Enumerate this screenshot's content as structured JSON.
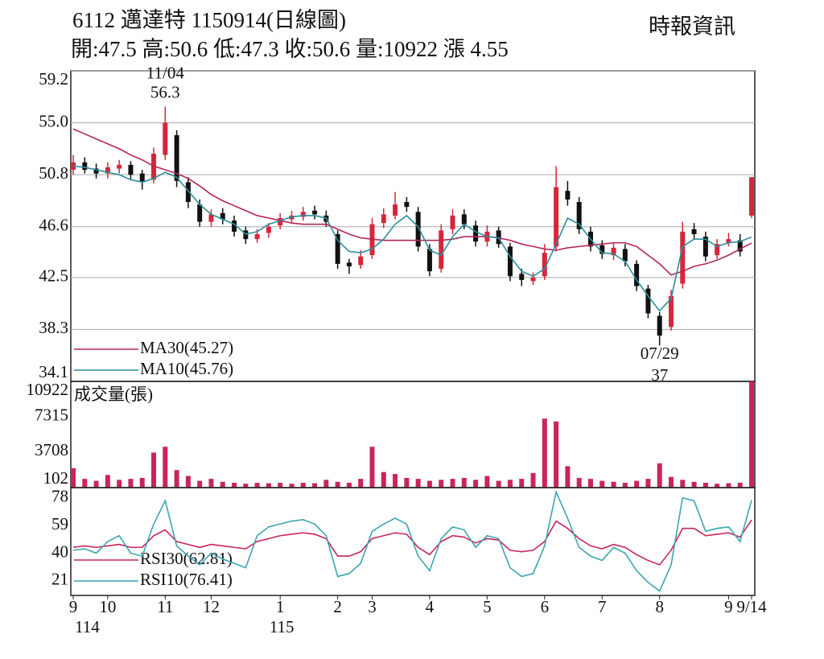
{
  "header": {
    "title": "6112  邁達特 1150914(日線圖)",
    "summary": "開:47.5 高:50.6 低:47.3 收:50.6 量:10922 漲 4.55",
    "source": "時報資訊"
  },
  "chart_data": [
    {
      "type": "candlestick",
      "categories": [
        "9",
        null,
        null,
        "10",
        null,
        null,
        null,
        null,
        "11",
        null,
        null,
        null,
        "12",
        null,
        null,
        null,
        null,
        null,
        "1",
        null,
        null,
        null,
        null,
        "2",
        null,
        null,
        "3",
        null,
        null,
        null,
        null,
        "4",
        null,
        null,
        null,
        null,
        "5",
        null,
        null,
        null,
        null,
        "6",
        null,
        null,
        null,
        null,
        "7",
        null,
        null,
        null,
        null,
        "8",
        null,
        null,
        null,
        null,
        null,
        "9",
        null,
        "9/14"
      ],
      "year_labels": [
        "114",
        null,
        null,
        null,
        null,
        null,
        null,
        null,
        null,
        null,
        null,
        null,
        null,
        null,
        null,
        null,
        null,
        null,
        "115",
        null,
        null,
        null,
        null,
        null,
        null,
        null,
        null,
        null,
        null,
        null,
        null,
        null,
        null,
        null,
        null,
        null,
        null,
        null,
        null,
        null,
        null,
        null,
        null,
        null,
        null,
        null,
        null,
        null,
        null,
        null,
        null,
        null,
        null,
        null,
        null,
        null,
        null,
        null,
        null,
        null
      ],
      "open": [
        51.2,
        51.8,
        51.3,
        50.9,
        51.3,
        51.6,
        50.9,
        50.4,
        52.4,
        54.0,
        50.2,
        48.4,
        47.0,
        47.7,
        47.1,
        46.3,
        45.6,
        46.1,
        46.7,
        47.2,
        47.4,
        47.9,
        47.5,
        46.0,
        43.7,
        43.5,
        44.3,
        46.9,
        47.5,
        48.6,
        47.8,
        44.8,
        43.2,
        46.4,
        47.6,
        46.7,
        45.4,
        46.3,
        45.0,
        42.8,
        42.2,
        42.6,
        45.0,
        49.5,
        48.6,
        46.2,
        45.1,
        44.3,
        44.8,
        43.6,
        41.6,
        39.4,
        38.5,
        42.0,
        46.4,
        45.8,
        44.3,
        45.3,
        45.5,
        47.5
      ],
      "high": [
        52.4,
        52.2,
        51.7,
        51.8,
        52.0,
        51.9,
        51.2,
        53.0,
        56.3,
        54.4,
        50.6,
        48.8,
        48.0,
        48.1,
        47.5,
        46.6,
        46.4,
        46.9,
        47.7,
        47.9,
        48.2,
        48.3,
        47.9,
        46.3,
        44.0,
        44.7,
        47.3,
        48.1,
        49.4,
        49.0,
        48.2,
        45.2,
        46.8,
        48.0,
        48.0,
        47.1,
        46.7,
        46.6,
        45.3,
        43.2,
        42.9,
        45.2,
        51.5,
        50.3,
        49.0,
        46.6,
        45.5,
        45.3,
        45.2,
        43.9,
        41.9,
        39.7,
        41.5,
        47.0,
        46.9,
        46.2,
        45.6,
        46.1,
        46.0,
        50.6
      ],
      "low": [
        50.8,
        50.9,
        50.5,
        50.5,
        50.9,
        50.4,
        49.6,
        50.1,
        52.0,
        49.8,
        48.1,
        46.6,
        46.6,
        46.8,
        45.8,
        45.2,
        45.3,
        45.7,
        46.4,
        46.9,
        47.1,
        47.2,
        46.6,
        43.2,
        42.8,
        43.2,
        44.0,
        46.5,
        47.2,
        47.8,
        44.6,
        42.6,
        42.9,
        46.0,
        46.4,
        45.0,
        45.0,
        44.9,
        42.2,
        41.8,
        41.9,
        42.3,
        44.6,
        48.3,
        46.0,
        44.6,
        44.0,
        43.9,
        43.4,
        41.4,
        39.2,
        37,
        38.2,
        41.6,
        45.6,
        43.8,
        44.0,
        45.0,
        44.2,
        47.3
      ],
      "close": [
        51.8,
        51.2,
        50.9,
        51.4,
        51.6,
        50.8,
        50.2,
        52.5,
        55.0,
        50.3,
        48.6,
        47.0,
        47.6,
        47.2,
        46.2,
        45.6,
        46.0,
        46.6,
        47.3,
        47.5,
        47.8,
        47.6,
        47.0,
        43.6,
        43.4,
        44.2,
        46.8,
        47.6,
        48.4,
        48.2,
        45.0,
        43.0,
        46.3,
        47.5,
        46.8,
        45.4,
        46.2,
        45.2,
        42.6,
        42.3,
        42.5,
        44.5,
        49.8,
        48.8,
        46.4,
        45.0,
        44.4,
        44.9,
        43.8,
        41.8,
        39.6,
        37.8,
        41.0,
        46.2,
        46.0,
        44.2,
        45.2,
        45.6,
        44.6,
        50.6
      ],
      "up_color": "#d6263b",
      "down_color": "#111111",
      "series": [
        {
          "name": "MA30(45.27)",
          "color": "#b5255a",
          "values": [
            54.5,
            54.1,
            53.7,
            53.3,
            52.9,
            52.4,
            52.0,
            51.5,
            51.2,
            50.9,
            50.5,
            49.9,
            49.2,
            48.7,
            48.3,
            47.9,
            47.5,
            47.3,
            47.1,
            46.9,
            46.8,
            46.8,
            46.8,
            46.4,
            46.0,
            45.7,
            45.6,
            45.5,
            45.5,
            45.5,
            45.5,
            45.5,
            45.5,
            45.6,
            45.8,
            45.8,
            45.8,
            45.7,
            45.5,
            45.2,
            45.0,
            44.8,
            44.7,
            44.9,
            45.0,
            45.1,
            45.2,
            45.3,
            45.3,
            45.0,
            44.3,
            43.6,
            42.7,
            43.0,
            43.4,
            43.6,
            43.9,
            44.3,
            44.8,
            45.27
          ]
        },
        {
          "name": "MA10(45.76)",
          "color": "#2a8f9a",
          "values": [
            51.5,
            51.4,
            51.2,
            51.0,
            50.8,
            50.4,
            50.2,
            50.5,
            51.0,
            50.6,
            49.5,
            48.4,
            47.6,
            47.2,
            46.8,
            46.0,
            46.2,
            46.8,
            47.1,
            47.4,
            47.5,
            47.5,
            47.3,
            45.5,
            44.6,
            44.5,
            44.8,
            45.6,
            46.8,
            47.5,
            46.6,
            44.7,
            44.3,
            45.8,
            46.8,
            46.2,
            45.8,
            45.7,
            44.2,
            43.0,
            42.6,
            43.2,
            45.2,
            47.3,
            46.8,
            45.6,
            44.5,
            44.4,
            43.8,
            42.3,
            41.0,
            39.8,
            40.8,
            45.0,
            45.6,
            45.6,
            45.0,
            45.3,
            45.4,
            45.76
          ]
        }
      ],
      "annotations": [
        {
          "label": "11/04",
          "value": 56.3
        },
        {
          "label": "07/29",
          "value": 37
        }
      ],
      "ylim": [
        34.1,
        59.2
      ],
      "yticks": [
        59.2,
        {
          "value": 55,
          "label": "55.0"
        },
        50.8,
        46.6,
        42.5,
        38.3,
        34.1
      ],
      "grid": true
    },
    {
      "type": "bar",
      "series": [
        {
          "name": "成交量(張)",
          "color": "#c8245e",
          "values": [
            2000,
            900,
            700,
            1300,
            800,
            900,
            1000,
            3600,
            4200,
            1800,
            1200,
            700,
            900,
            600,
            500,
            400,
            500,
            450,
            500,
            400,
            500,
            450,
            800,
            600,
            500,
            900,
            4200,
            1600,
            1400,
            1000,
            900,
            700,
            800,
            900,
            1000,
            800,
            1200,
            700,
            800,
            900,
            1500,
            7100,
            6800,
            2200,
            1000,
            900,
            700,
            600,
            500,
            700,
            900,
            2500,
            1100,
            800,
            600,
            500,
            400,
            450,
            500,
            10922
          ]
        }
      ],
      "ylim": [
        0,
        10922
      ],
      "yticks": [
        102,
        3708,
        7315,
        10922
      ],
      "grid": false
    },
    {
      "type": "line",
      "series": [
        {
          "name": "RSI30(62.81)",
          "color": "#c8245e",
          "values": [
            44,
            45,
            44,
            45,
            46,
            44,
            44,
            52,
            56,
            48,
            46,
            44,
            46,
            45,
            44,
            43,
            48,
            50,
            52,
            53,
            54,
            53,
            50,
            38,
            38,
            41,
            50,
            52,
            54,
            53,
            44,
            39,
            48,
            52,
            51,
            47,
            50,
            49,
            42,
            41,
            42,
            48,
            62,
            57,
            50,
            45,
            43,
            46,
            44,
            39,
            35,
            32,
            42,
            57,
            57,
            52,
            53,
            54,
            51,
            62.81
          ]
        },
        {
          "name": "RSI10(76.41)",
          "color": "#3aa5b0",
          "values": [
            42,
            43,
            40,
            48,
            52,
            40,
            38,
            60,
            76,
            45,
            38,
            32,
            40,
            36,
            33,
            30,
            52,
            58,
            60,
            62,
            63,
            60,
            52,
            24,
            26,
            33,
            55,
            60,
            64,
            60,
            38,
            28,
            50,
            58,
            56,
            44,
            52,
            50,
            30,
            24,
            26,
            45,
            82,
            64,
            44,
            38,
            35,
            44,
            40,
            28,
            20,
            14,
            32,
            78,
            76,
            55,
            57,
            58,
            48,
            76.41
          ]
        }
      ],
      "ylim": [
        11,
        85
      ],
      "yticks": [
        21,
        40,
        59,
        78
      ],
      "grid": false
    }
  ]
}
